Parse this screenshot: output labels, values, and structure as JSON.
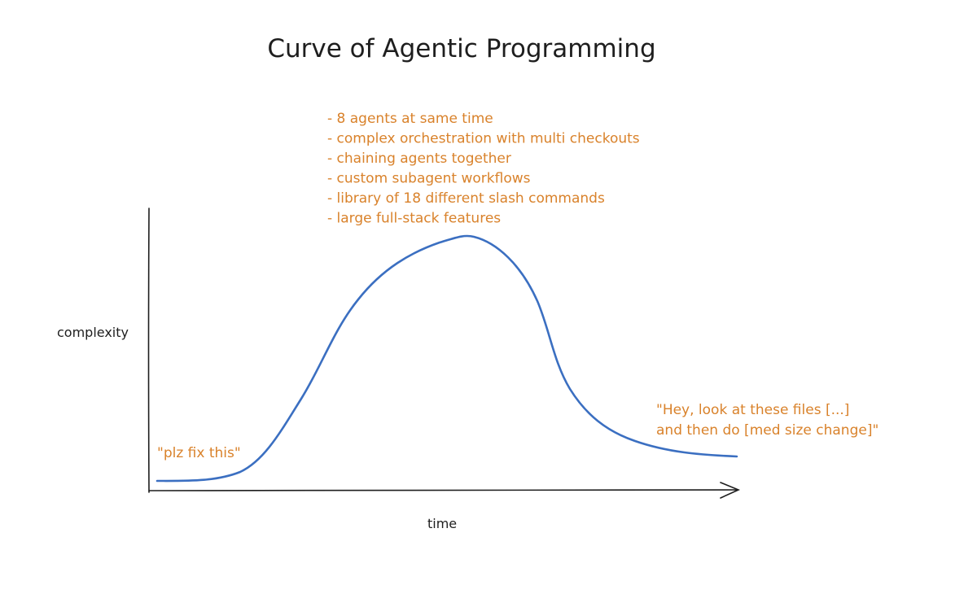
{
  "title": "Curve of Agentic Programming",
  "axes": {
    "y_label": "complexity",
    "x_label": "time"
  },
  "annotations": {
    "start": "\"plz fix this\"",
    "peak": [
      "- 8 agents at same time",
      "- complex orchestration with multi checkouts",
      "- chaining agents together",
      "- custom subagent workflows",
      "- library of 18 different slash commands",
      "- large full-stack features"
    ],
    "end": [
      "\"Hey, look at these files [...]",
      "and then do [med size change]\""
    ]
  }
}
